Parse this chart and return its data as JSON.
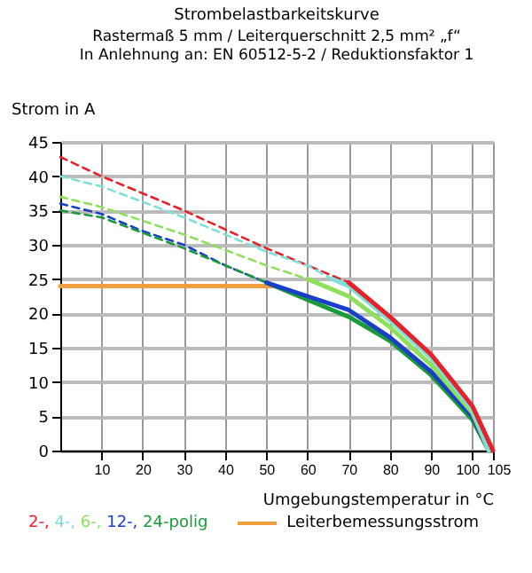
{
  "chart_data": {
    "type": "line",
    "title": "Strombelastbarkeitskurve",
    "subtitle": "Rastermaß 5 mm / Leiterquerschnitt 2,5 mm² „f“\nIn Anlehnung an: EN 60512-5-2 / Reduktionsfaktor 1",
    "ylabel": "Strom in A",
    "xlabel": "Umgebungstemperatur in °C",
    "xlim": [
      0,
      105
    ],
    "xticks": [
      10,
      20,
      30,
      40,
      50,
      60,
      70,
      80,
      90,
      100,
      105
    ],
    "ylim": [
      0,
      45
    ],
    "yticks": [
      0,
      5,
      10,
      15,
      20,
      25,
      30,
      35,
      40,
      45
    ],
    "grid": true,
    "legend": "bottom",
    "series": [
      {
        "color": "#f0a040",
        "line_style": "solid",
        "name": "Leiterbemessungsstrom",
        "x": [
          0,
          52
        ],
        "values": [
          24,
          24
        ]
      },
      {
        "color": "#e8202a",
        "line_style": "dashed",
        "x": [
          0,
          10,
          30,
          50,
          60,
          70
        ],
        "values": [
          42.8,
          40,
          35,
          29.5,
          27,
          24.5
        ]
      },
      {
        "color": "#7fe0d8",
        "line_style": "dashed",
        "x": [
          0,
          10,
          30,
          50,
          60,
          66
        ],
        "values": [
          40,
          38.5,
          34,
          29,
          27,
          25
        ]
      },
      {
        "color": "#8ee05a",
        "line_style": "dashed",
        "x": [
          0,
          10,
          30,
          50,
          60
        ],
        "values": [
          37,
          35.5,
          31.5,
          27,
          25
        ]
      },
      {
        "color": "#1a3fc8",
        "line_style": "dashed",
        "x": [
          0,
          10,
          20,
          30,
          40,
          50
        ],
        "values": [
          36,
          34.5,
          32,
          30,
          27,
          24.5
        ]
      },
      {
        "color": "#1a9a3a",
        "line_style": "dashed",
        "x": [
          0,
          10,
          30,
          50
        ],
        "values": [
          35,
          34,
          29.5,
          24.5
        ]
      },
      {
        "name": "24-polig",
        "color": "#1a9a3a",
        "line_style": "solid",
        "x": [
          50,
          60,
          70,
          80,
          90,
          100,
          104
        ],
        "values": [
          24.5,
          22,
          19.5,
          16,
          11,
          4.5,
          0
        ]
      },
      {
        "name": "12-,",
        "color": "#1a3fc8",
        "line_style": "solid",
        "x": [
          50,
          60,
          70,
          80,
          90,
          100,
          104
        ],
        "values": [
          24.5,
          22.5,
          20.5,
          16.5,
          11.5,
          5,
          0
        ]
      },
      {
        "name": "6-,",
        "color": "#8ee05a",
        "line_style": "solid",
        "x": [
          60,
          70,
          80,
          90,
          100,
          104
        ],
        "values": [
          25,
          22.5,
          18,
          12.5,
          5.5,
          0
        ]
      },
      {
        "name": "4-,",
        "color": "#7fe0d8",
        "line_style": "solid",
        "x": [
          66,
          70,
          80,
          90,
          100,
          104
        ],
        "values": [
          25,
          24,
          19,
          13.5,
          6,
          0
        ]
      },
      {
        "name": "2-,",
        "color": "#e8202a",
        "line_style": "solid",
        "x": [
          70,
          80,
          90,
          100,
          105
        ],
        "values": [
          24.5,
          19.5,
          14,
          6.5,
          0
        ]
      }
    ]
  }
}
